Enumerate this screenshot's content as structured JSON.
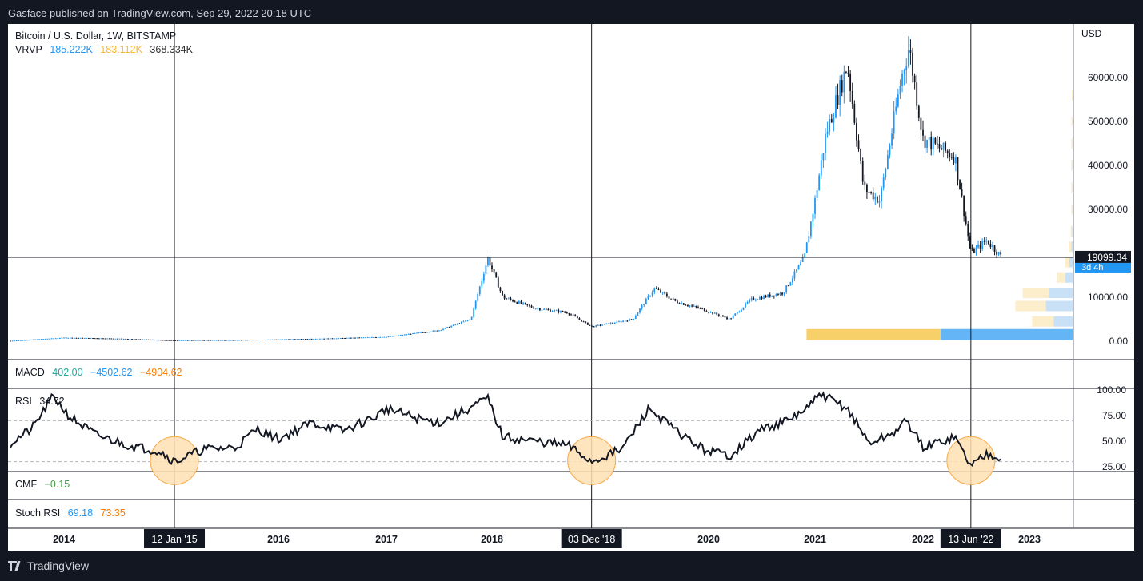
{
  "header": {
    "published": "Gasface published on TradingView.com, Sep 29, 2022 20:18 UTC"
  },
  "footer": {
    "brand": "TradingView"
  },
  "legend": {
    "symbol": "Bitcoin / U.S. Dollar, 1W, BITSTAMP",
    "vrvp_label": "VRVP",
    "vrvp_up": "185.222K",
    "vrvp_down": "183.112K",
    "vrvp_total": "368.334K",
    "macd_label": "MACD",
    "macd_v1": "402.00",
    "macd_v2": "−4502.62",
    "macd_v3": "−4904.62",
    "rsi_label": "RSI",
    "rsi_value": "34.72",
    "cmf_label": "CMF",
    "cmf_value": "−0.15",
    "stoch_label": "Stoch RSI",
    "stoch_k": "69.18",
    "stoch_d": "73.35"
  },
  "colors": {
    "up": "#2196f3",
    "down": "#131722",
    "vrvp_up": "#f7d06a",
    "vrvp_down": "#64b5f6",
    "macd1": "#26a69a",
    "macd2": "#2196f3",
    "macd3": "#f57c00",
    "cmf": "#43a047",
    "stoch_k": "#2196f3",
    "stoch_d": "#f57c00",
    "circle_fill": "#ffe0b2",
    "circle_stroke": "#f7a948",
    "price_label_bg": "#131722",
    "countdown_bg": "#2196f3"
  },
  "chart_data": {
    "type": "candlestick",
    "price_axis": {
      "unit": "USD",
      "ticks": [
        "60000.00",
        "50000.00",
        "40000.00",
        "30000.00",
        "10000.00",
        "0.00"
      ],
      "tick_values": [
        60000,
        50000,
        40000,
        30000,
        10000,
        0
      ],
      "range": [
        0,
        70000
      ]
    },
    "current_price": {
      "label": "19099.34",
      "value": 19099.34,
      "countdown": "3d 4h"
    },
    "x_axis": {
      "ticks": [
        "2014",
        "2016",
        "2017",
        "2018",
        "2020",
        "2021",
        "2022",
        "2023"
      ],
      "tick_years": [
        2014,
        2016,
        2017,
        2018,
        2020,
        2021,
        2022,
        2023
      ],
      "highlighted_dates": [
        "12 Jan '15",
        "03 Dec '18",
        "13 Jun '22"
      ],
      "highlighted_years": [
        2015.03,
        2018.92,
        2022.45
      ]
    },
    "price_path": [
      [
        2013.5,
        100
      ],
      [
        2014.0,
        800
      ],
      [
        2014.5,
        600
      ],
      [
        2015.0,
        220
      ],
      [
        2015.5,
        250
      ],
      [
        2016.0,
        420
      ],
      [
        2016.5,
        650
      ],
      [
        2017.0,
        1000
      ],
      [
        2017.5,
        2500
      ],
      [
        2017.8,
        5000
      ],
      [
        2017.96,
        19000
      ],
      [
        2018.1,
        10000
      ],
      [
        2018.4,
        7500
      ],
      [
        2018.7,
        6500
      ],
      [
        2018.92,
        3300
      ],
      [
        2019.3,
        5000
      ],
      [
        2019.5,
        12000
      ],
      [
        2019.7,
        9000
      ],
      [
        2019.95,
        7200
      ],
      [
        2020.2,
        5000
      ],
      [
        2020.4,
        9500
      ],
      [
        2020.7,
        11000
      ],
      [
        2020.9,
        19000
      ],
      [
        2021.0,
        32000
      ],
      [
        2021.1,
        47000
      ],
      [
        2021.3,
        63000
      ],
      [
        2021.45,
        35000
      ],
      [
        2021.6,
        32000
      ],
      [
        2021.8,
        60000
      ],
      [
        2021.87,
        67000
      ],
      [
        2022.0,
        46000
      ],
      [
        2022.3,
        42000
      ],
      [
        2022.45,
        20000
      ],
      [
        2022.6,
        23000
      ],
      [
        2022.74,
        19100
      ]
    ],
    "volume_profile": [
      {
        "price": 1500,
        "up": 185000,
        "down": 183000
      },
      {
        "price": 4500,
        "up": 30000,
        "down": 27000
      },
      {
        "price": 8000,
        "up": 42000,
        "down": 38000
      },
      {
        "price": 11000,
        "up": 36000,
        "down": 34000
      },
      {
        "price": 14500,
        "up": 12000,
        "down": 11000
      },
      {
        "price": 18000,
        "up": 6000,
        "down": 5500
      },
      {
        "price": 21500,
        "up": 3500,
        "down": 3000
      },
      {
        "price": 25000,
        "up": 2000,
        "down": 1800
      },
      {
        "price": 30000,
        "up": 1500,
        "down": 1400
      },
      {
        "price": 35000,
        "up": 1500,
        "down": 1400
      },
      {
        "price": 40000,
        "up": 1700,
        "down": 1500
      },
      {
        "price": 45000,
        "up": 1500,
        "down": 1400
      },
      {
        "price": 50000,
        "up": 1400,
        "down": 1300
      },
      {
        "price": 56000,
        "up": 1200,
        "down": 1100
      }
    ],
    "rsi": {
      "ticks": [
        "100.00",
        "75.00",
        "50.00",
        "25.00"
      ],
      "tick_values": [
        100,
        75,
        50,
        25
      ],
      "levels": [
        70,
        30
      ],
      "path": [
        [
          2013.5,
          48
        ],
        [
          2013.7,
          62
        ],
        [
          2013.9,
          94
        ],
        [
          2014.05,
          74
        ],
        [
          2014.3,
          56
        ],
        [
          2014.6,
          46
        ],
        [
          2014.9,
          40
        ],
        [
          2015.03,
          30
        ],
        [
          2015.3,
          42
        ],
        [
          2015.6,
          44
        ],
        [
          2015.8,
          62
        ],
        [
          2016.0,
          52
        ],
        [
          2016.3,
          68
        ],
        [
          2016.6,
          60
        ],
        [
          2016.9,
          74
        ],
        [
          2017.0,
          82
        ],
        [
          2017.3,
          72
        ],
        [
          2017.5,
          68
        ],
        [
          2017.75,
          80
        ],
        [
          2017.96,
          92
        ],
        [
          2018.1,
          54
        ],
        [
          2018.4,
          50
        ],
        [
          2018.7,
          46
        ],
        [
          2018.92,
          30
        ],
        [
          2019.2,
          42
        ],
        [
          2019.45,
          82
        ],
        [
          2019.7,
          60
        ],
        [
          2019.95,
          42
        ],
        [
          2020.2,
          36
        ],
        [
          2020.5,
          62
        ],
        [
          2020.75,
          70
        ],
        [
          2020.95,
          84
        ],
        [
          2021.05,
          96
        ],
        [
          2021.3,
          82
        ],
        [
          2021.5,
          48
        ],
        [
          2021.7,
          56
        ],
        [
          2021.85,
          70
        ],
        [
          2022.0,
          44
        ],
        [
          2022.3,
          54
        ],
        [
          2022.45,
          26
        ],
        [
          2022.6,
          38
        ],
        [
          2022.74,
          35
        ]
      ]
    }
  }
}
